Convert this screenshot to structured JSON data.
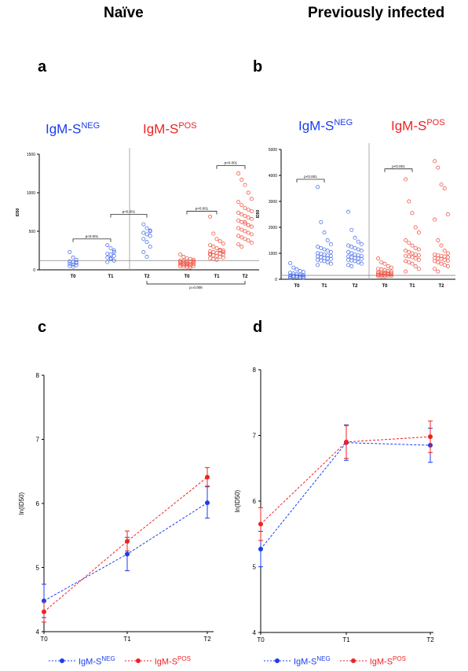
{
  "headers": {
    "left": "Naïve",
    "right": "Previously infected"
  },
  "panels": {
    "a": "a",
    "b": "b",
    "c": "c",
    "d": "d"
  },
  "groups": {
    "neg_base": "IgM-S",
    "neg_sup": "NEG",
    "pos_base": "IgM-S",
    "pos_sup": "POS"
  },
  "colors": {
    "neg": "#1a3cf0",
    "pos": "#ee2222",
    "neg_open": "#3a63e8",
    "pos_open": "#ee4433",
    "ref_line": "#888888"
  },
  "chart_data": [
    {
      "id": "a",
      "type": "scatter",
      "ylabel": "ID50",
      "ylim": [
        0,
        1500
      ],
      "yticks": [
        "0",
        "500",
        "1000",
        "1500"
      ],
      "categories": [
        "T0",
        "T1",
        "T2",
        "T0",
        "T1",
        "T2"
      ],
      "reference_line": 120,
      "annotations": [
        {
          "text": "p<0.001",
          "from": 0,
          "to": 1
        },
        {
          "text": "p<0.001",
          "from": 1,
          "to": 2
        },
        {
          "text": "p<0.001",
          "from": 3,
          "to": 4
        },
        {
          "text": "p<0.001",
          "from": 4,
          "to": 5
        },
        {
          "text": "p=0.008",
          "from": 2,
          "to": 5,
          "below": true
        }
      ],
      "series": [
        {
          "group": "neg",
          "cat": 0,
          "values": [
            230,
            160,
            130,
            110,
            100,
            90,
            80,
            70,
            60,
            50,
            40,
            100
          ]
        },
        {
          "group": "neg",
          "cat": 1,
          "values": [
            320,
            280,
            250,
            210,
            200,
            180,
            160,
            140,
            120,
            100,
            150,
            230
          ]
        },
        {
          "group": "neg",
          "cat": 2,
          "values": [
            590,
            540,
            500,
            480,
            460,
            440,
            400,
            360,
            300,
            230,
            170,
            510
          ]
        },
        {
          "group": "pos",
          "cat": 3,
          "values": [
            200,
            170,
            150,
            140,
            130,
            120,
            115,
            110,
            105,
            100,
            95,
            90,
            85,
            80,
            75,
            70,
            65,
            60,
            55,
            50,
            45,
            40,
            35,
            30,
            110,
            100,
            90,
            80
          ]
        },
        {
          "group": "pos",
          "cat": 4,
          "values": [
            690,
            470,
            400,
            370,
            340,
            320,
            300,
            280,
            260,
            250,
            240,
            230,
            220,
            210,
            200,
            195,
            190,
            180,
            170,
            160,
            150,
            140,
            130,
            250,
            230,
            210
          ]
        },
        {
          "group": "pos",
          "cat": 5,
          "values": [
            1250,
            1170,
            1100,
            1000,
            920,
            880,
            840,
            800,
            780,
            760,
            740,
            720,
            700,
            680,
            660,
            640,
            620,
            600,
            580,
            560,
            540,
            520,
            500,
            480,
            460,
            440,
            420,
            400,
            380,
            350,
            330,
            300,
            620,
            580
          ]
        }
      ]
    },
    {
      "id": "b",
      "type": "scatter",
      "ylabel": "ID50",
      "ylim": [
        0,
        5000
      ],
      "yticks": [
        "0",
        "1000",
        "2000",
        "3000",
        "4000",
        "5000"
      ],
      "categories": [
        "T0",
        "T1",
        "T2",
        "T0",
        "T1",
        "T2"
      ],
      "reference_line": 150,
      "annotations": [
        {
          "text": "p<0.001",
          "from": 0,
          "to": 1
        },
        {
          "text": "p<0.001",
          "from": 3,
          "to": 4
        }
      ],
      "series": [
        {
          "group": "neg",
          "cat": 0,
          "values": [
            620,
            450,
            380,
            320,
            280,
            250,
            220,
            200,
            180,
            160,
            150,
            140,
            130,
            120,
            110,
            100,
            90,
            80,
            70,
            60,
            50
          ]
        },
        {
          "group": "neg",
          "cat": 1,
          "values": [
            3550,
            2200,
            1800,
            1500,
            1350,
            1250,
            1200,
            1150,
            1100,
            1050,
            1000,
            980,
            950,
            920,
            900,
            880,
            850,
            820,
            800,
            780,
            750,
            720,
            700,
            650,
            600,
            550
          ]
        },
        {
          "group": "neg",
          "cat": 2,
          "values": [
            2600,
            1900,
            1600,
            1450,
            1350,
            1300,
            1250,
            1200,
            1150,
            1100,
            1050,
            1000,
            950,
            920,
            900,
            880,
            850,
            820,
            800,
            780,
            750,
            720,
            700,
            650,
            600,
            550,
            500
          ]
        },
        {
          "group": "pos",
          "cat": 3,
          "values": [
            800,
            650,
            600,
            500,
            450,
            400,
            380,
            350,
            320,
            300,
            280,
            260,
            250,
            240,
            230,
            220,
            210,
            200,
            190,
            180,
            170,
            160,
            150,
            140,
            130,
            120,
            110,
            100
          ]
        },
        {
          "group": "pos",
          "cat": 4,
          "values": [
            3850,
            3000,
            2550,
            2000,
            1800,
            1500,
            1400,
            1300,
            1200,
            1150,
            1100,
            1050,
            1000,
            950,
            920,
            900,
            880,
            850,
            800,
            750,
            700,
            650,
            600,
            500,
            400,
            300
          ]
        },
        {
          "group": "pos",
          "cat": 5,
          "values": [
            4550,
            4300,
            3650,
            3500,
            2500,
            2300,
            1500,
            1300,
            1100,
            1000,
            950,
            920,
            900,
            880,
            850,
            820,
            800,
            780,
            750,
            720,
            700,
            650,
            600,
            550,
            500,
            400,
            300
          ]
        }
      ]
    },
    {
      "id": "c",
      "type": "line",
      "ylabel": "ln(ID50)",
      "ylim": [
        4,
        8
      ],
      "yticks": [
        "4",
        "5",
        "6",
        "7",
        "8"
      ],
      "categories": [
        "T0",
        "T1",
        "T2"
      ],
      "series": [
        {
          "name": "IgM-S NEG",
          "group": "neg",
          "values": [
            4.48,
            5.21,
            6.01
          ],
          "err_low": [
            4.22,
            4.95,
            5.77
          ],
          "err_high": [
            4.74,
            5.47,
            6.27
          ]
        },
        {
          "name": "IgM-S POS",
          "group": "pos",
          "values": [
            4.31,
            5.41,
            6.41
          ],
          "err_low": [
            4.15,
            5.26,
            6.26
          ],
          "err_high": [
            4.47,
            5.57,
            6.56
          ]
        }
      ]
    },
    {
      "id": "d",
      "type": "line",
      "ylabel": "ln(ID50)",
      "ylim": [
        4,
        8
      ],
      "yticks": [
        "4",
        "5",
        "6",
        "7",
        "8"
      ],
      "categories": [
        "T0",
        "T1",
        "T2"
      ],
      "series": [
        {
          "name": "IgM-S NEG",
          "group": "neg",
          "values": [
            5.27,
            6.89,
            6.85
          ],
          "err_low": [
            5.0,
            6.62,
            6.59
          ],
          "err_high": [
            5.54,
            7.16,
            7.11
          ]
        },
        {
          "name": "IgM-S POS",
          "group": "pos",
          "values": [
            5.65,
            6.9,
            6.98
          ],
          "err_low": [
            5.4,
            6.65,
            6.74
          ],
          "err_high": [
            5.9,
            7.15,
            7.22
          ]
        }
      ]
    }
  ]
}
